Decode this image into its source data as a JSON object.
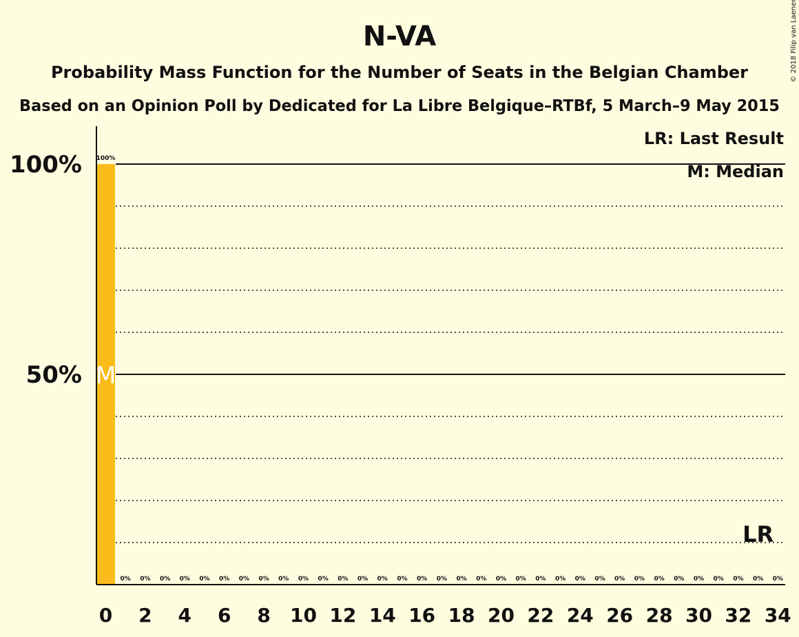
{
  "chart_data": {
    "type": "bar",
    "title": "N-VA",
    "subtitle": "Probability Mass Function for the Number of Seats in the Belgian Chamber",
    "subtitle2": "Based on an Opinion Poll by Dedicated for La Libre Belgique–RTBf, 5 March–9 May 2015",
    "copyright": "© 2018 Filip van Laenen",
    "legend": {
      "last_result": "LR: Last Result",
      "median": "M: Median",
      "position": "top-right"
    },
    "x": [
      0,
      1,
      2,
      3,
      4,
      5,
      6,
      7,
      8,
      9,
      10,
      11,
      12,
      13,
      14,
      15,
      16,
      17,
      18,
      19,
      20,
      21,
      22,
      23,
      24,
      25,
      26,
      27,
      28,
      29,
      30,
      31,
      32,
      33,
      34
    ],
    "values": [
      100,
      0,
      0,
      0,
      0,
      0,
      0,
      0,
      0,
      0,
      0,
      0,
      0,
      0,
      0,
      0,
      0,
      0,
      0,
      0,
      0,
      0,
      0,
      0,
      0,
      0,
      0,
      0,
      0,
      0,
      0,
      0,
      0,
      0,
      0
    ],
    "value_labels": [
      "100%",
      "0%",
      "0%",
      "0%",
      "0%",
      "0%",
      "0%",
      "0%",
      "0%",
      "0%",
      "0%",
      "0%",
      "0%",
      "0%",
      "0%",
      "0%",
      "0%",
      "0%",
      "0%",
      "0%",
      "0%",
      "0%",
      "0%",
      "0%",
      "0%",
      "0%",
      "0%",
      "0%",
      "0%",
      "0%",
      "0%",
      "0%",
      "0%",
      "0%",
      "0%"
    ],
    "xticks": [
      "0",
      "2",
      "4",
      "6",
      "8",
      "10",
      "12",
      "14",
      "16",
      "18",
      "20",
      "22",
      "24",
      "26",
      "28",
      "30",
      "32",
      "34"
    ],
    "yticks": [
      {
        "value": 100,
        "label": "100%"
      },
      {
        "value": 50,
        "label": "50%"
      }
    ],
    "ylim": [
      0,
      100
    ],
    "xlim": [
      0,
      34
    ],
    "grid_dotted": [
      10,
      20,
      30,
      40,
      60,
      70,
      80,
      90
    ],
    "grid_solid": [
      50,
      100
    ],
    "median": {
      "seat": 0,
      "marker": "M"
    },
    "last_result": {
      "seat": 33,
      "marker": "LR"
    },
    "colors": {
      "bar": "#f9bc1a",
      "background": "#fffde0",
      "axis": "#111111"
    }
  }
}
